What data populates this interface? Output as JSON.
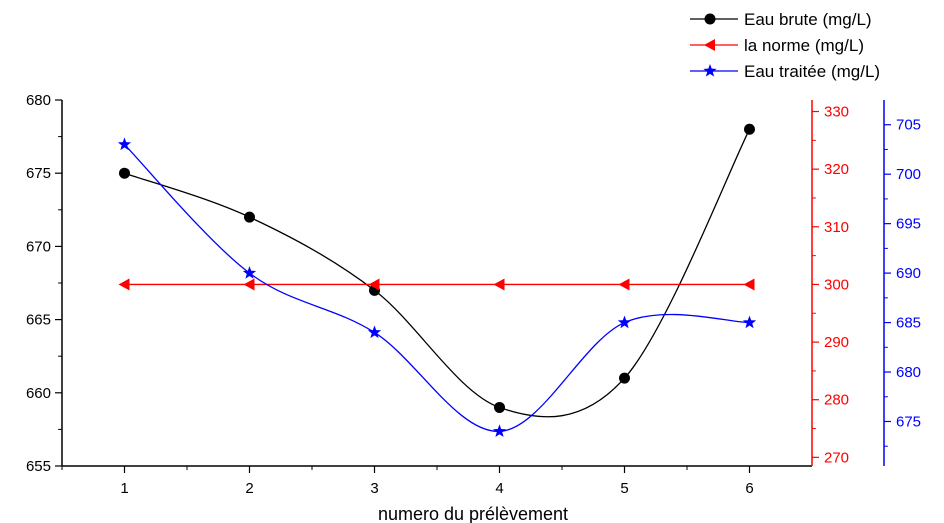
{
  "chart_data": {
    "type": "line",
    "title": "",
    "xlabel": "numero du prélèvement",
    "x": [
      1,
      2,
      3,
      4,
      5,
      6
    ],
    "xlim": [
      0.5,
      6.5
    ],
    "legend_position": "top-right",
    "grid": false,
    "series": [
      {
        "name": "Eau brute (mg/L)",
        "axis": "left",
        "color": "#000000",
        "marker": "circle",
        "smooth": true,
        "values": [
          675,
          672,
          667,
          659,
          661,
          678
        ]
      },
      {
        "name": "la norme (mg/L)",
        "axis": "right1",
        "color": "#ff0000",
        "marker": "triangle-left",
        "smooth": false,
        "values": [
          300,
          300,
          300,
          300,
          300,
          300
        ]
      },
      {
        "name": "Eau traitée (mg/L)",
        "axis": "right2",
        "color": "#0000ff",
        "marker": "star",
        "smooth": true,
        "values": [
          703,
          690,
          684,
          674,
          685,
          685
        ]
      }
    ],
    "axes": {
      "left": {
        "min": 655,
        "max": 680,
        "ticks": [
          655,
          660,
          665,
          670,
          675,
          680
        ],
        "color": "#000000"
      },
      "right1": {
        "min": 268.5,
        "max": 332,
        "ticks": [
          270,
          280,
          290,
          300,
          310,
          320,
          330
        ],
        "color": "#ff0000"
      },
      "right2": {
        "min": 670.5,
        "max": 707.5,
        "ticks": [
          675,
          680,
          685,
          690,
          695,
          700,
          705
        ],
        "color": "#0000ff"
      }
    }
  }
}
